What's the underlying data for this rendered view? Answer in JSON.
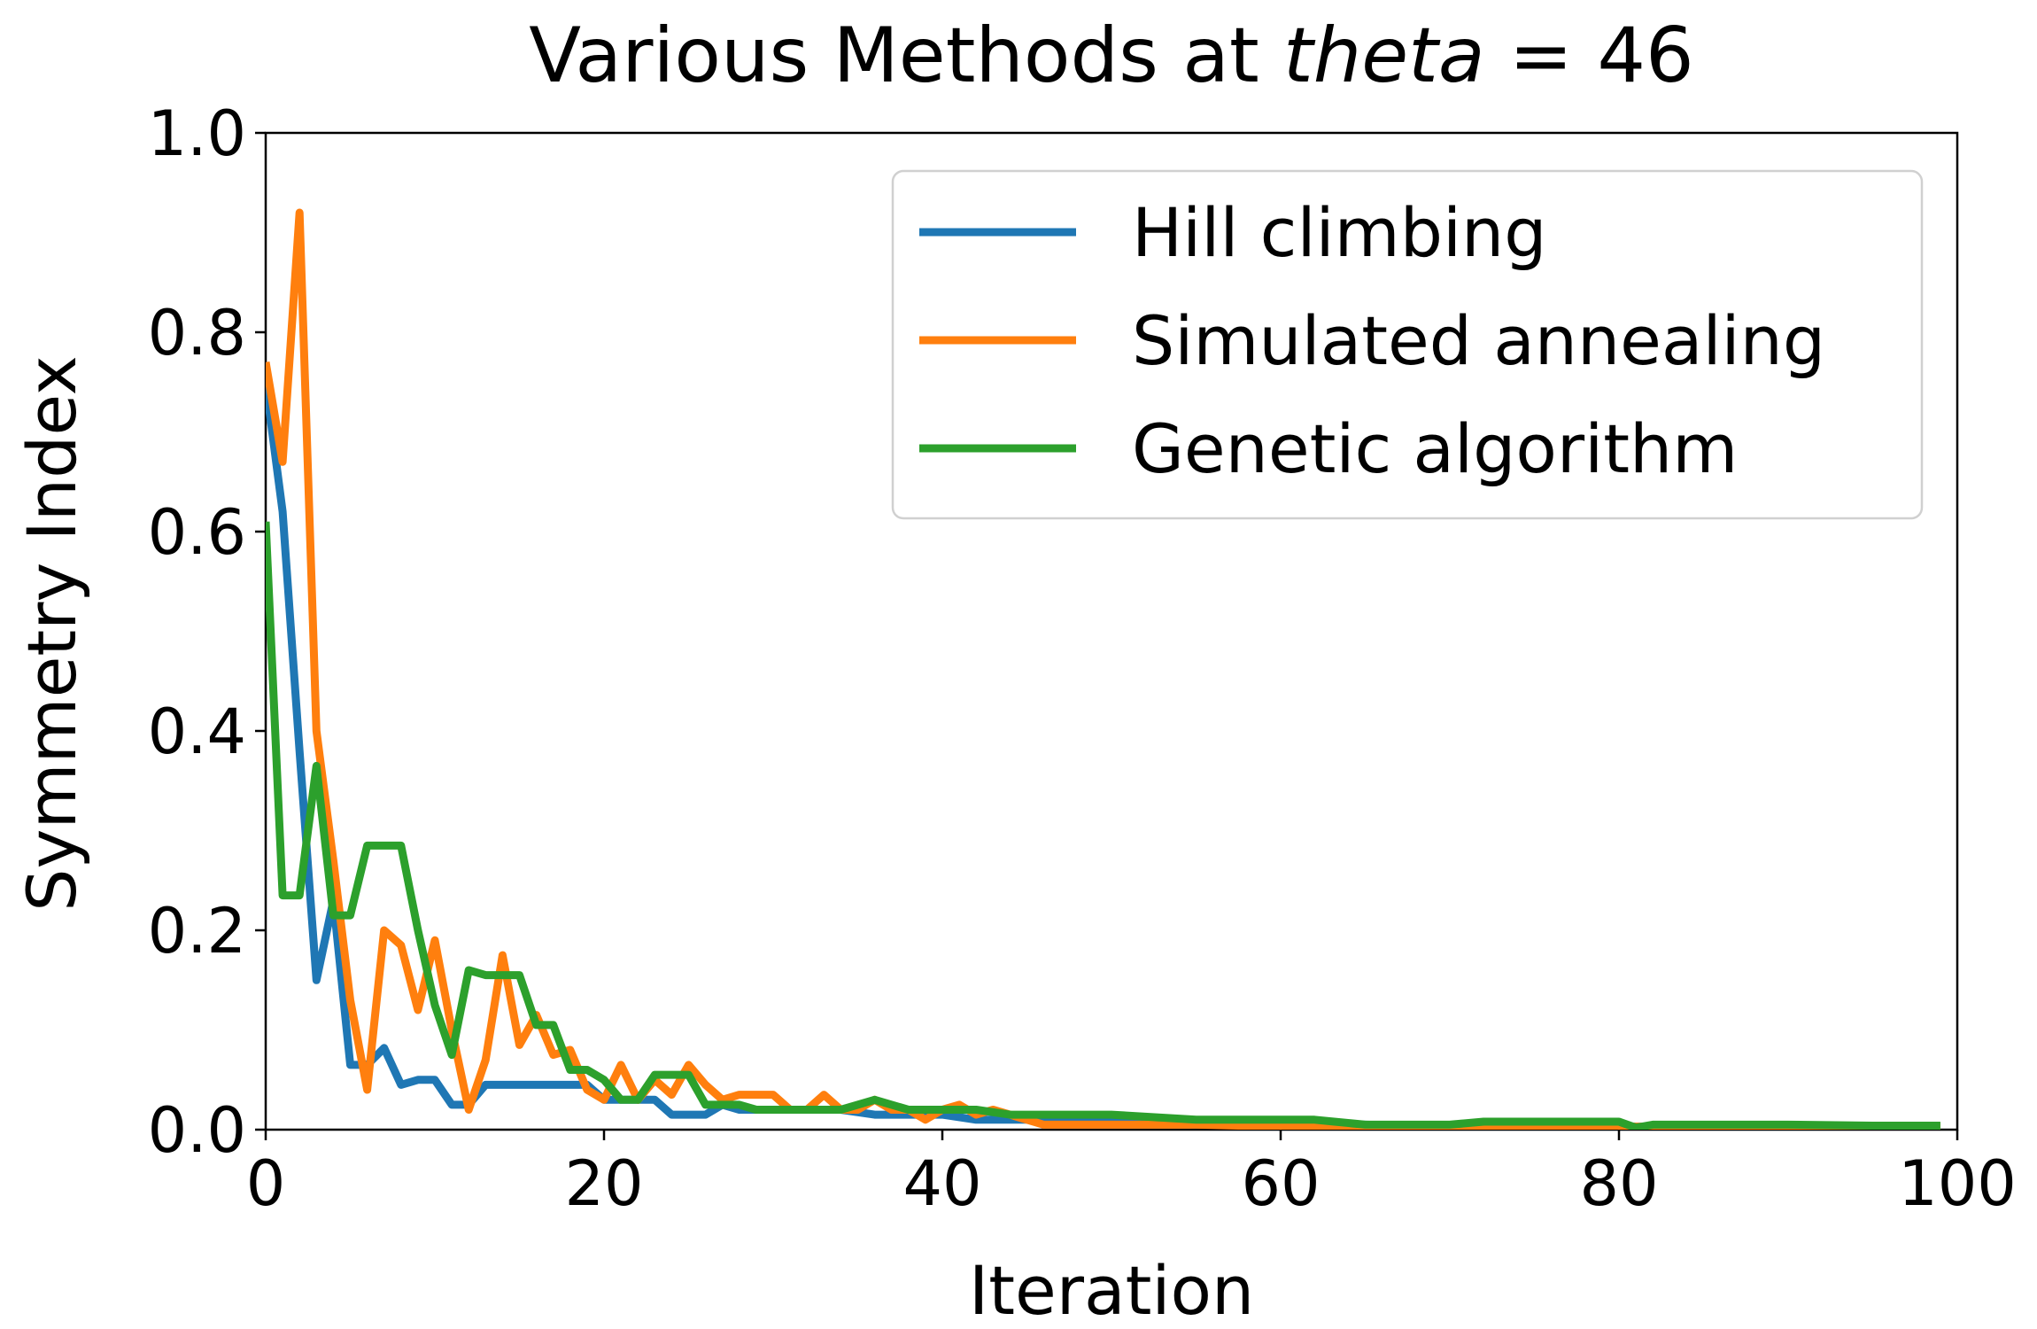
{
  "chart_data": {
    "type": "line",
    "title": "Various Methods at theta = 46",
    "title_parts": {
      "prefix": "Various Methods at ",
      "var": "theta",
      "eq": " = 46"
    },
    "xlabel": "Iteration",
    "ylabel": "Symmetry Index",
    "xlim": [
      0,
      100
    ],
    "ylim": [
      0,
      1.0
    ],
    "xticks": [
      "0",
      "20",
      "40",
      "60",
      "80",
      "100"
    ],
    "yticks": [
      "0.0",
      "0.2",
      "0.4",
      "0.6",
      "0.8",
      "1.0"
    ],
    "grid": false,
    "legend_position": "top-right",
    "series": [
      {
        "name": "Hill climbing",
        "color": "#1f77b4",
        "x": [
          0,
          1,
          2,
          3,
          4,
          5,
          6,
          7,
          8,
          9,
          10,
          11,
          12,
          13,
          14,
          15,
          16,
          17,
          18,
          19,
          20,
          21,
          22,
          23,
          24,
          25,
          26,
          27,
          28,
          29,
          30,
          32,
          34,
          36,
          38,
          40,
          42,
          44,
          46,
          48,
          50,
          55,
          60,
          65,
          70,
          75,
          80,
          85,
          90,
          95,
          99
        ],
        "y": [
          0.75,
          0.62,
          0.38,
          0.15,
          0.23,
          0.065,
          0.065,
          0.082,
          0.045,
          0.05,
          0.05,
          0.025,
          0.025,
          0.045,
          0.045,
          0.045,
          0.045,
          0.045,
          0.045,
          0.045,
          0.03,
          0.03,
          0.03,
          0.03,
          0.015,
          0.015,
          0.015,
          0.025,
          0.02,
          0.02,
          0.02,
          0.02,
          0.02,
          0.015,
          0.015,
          0.015,
          0.01,
          0.01,
          0.01,
          0.01,
          0.01,
          0.005,
          0.005,
          0.005,
          0.003,
          0.003,
          0.003,
          0.003,
          0.003,
          0.003,
          0.003
        ]
      },
      {
        "name": "Simulated annealing",
        "color": "#ff7f0e",
        "x": [
          0,
          1,
          2,
          3,
          4,
          5,
          6,
          7,
          8,
          9,
          10,
          11,
          12,
          13,
          14,
          15,
          16,
          17,
          18,
          19,
          20,
          21,
          22,
          23,
          24,
          25,
          26,
          27,
          28,
          29,
          30,
          31,
          32,
          33,
          34,
          35,
          36,
          37,
          38,
          39,
          40,
          41,
          42,
          43,
          44,
          45,
          46,
          48,
          50,
          55,
          60,
          65,
          70,
          75,
          80,
          85,
          90,
          95,
          99
        ],
        "y": [
          0.77,
          0.67,
          0.92,
          0.4,
          0.27,
          0.13,
          0.04,
          0.2,
          0.185,
          0.12,
          0.19,
          0.1,
          0.02,
          0.07,
          0.175,
          0.085,
          0.115,
          0.075,
          0.08,
          0.04,
          0.03,
          0.065,
          0.03,
          0.05,
          0.035,
          0.065,
          0.045,
          0.03,
          0.035,
          0.035,
          0.035,
          0.02,
          0.02,
          0.035,
          0.02,
          0.02,
          0.03,
          0.02,
          0.02,
          0.01,
          0.02,
          0.025,
          0.015,
          0.02,
          0.015,
          0.01,
          0.005,
          0.005,
          0.005,
          0.005,
          0.003,
          0.003,
          0.003,
          0.003,
          0.003,
          0.003,
          0.003,
          0.003,
          0.003
        ]
      },
      {
        "name": "Genetic algorithm",
        "color": "#2ca02c",
        "x": [
          0,
          1,
          2,
          3,
          4,
          5,
          6,
          7,
          8,
          9,
          10,
          11,
          12,
          13,
          14,
          15,
          16,
          17,
          18,
          19,
          20,
          21,
          22,
          23,
          24,
          25,
          26,
          27,
          28,
          29,
          30,
          32,
          34,
          36,
          38,
          40,
          42,
          44,
          46,
          48,
          50,
          55,
          60,
          62,
          65,
          70,
          72,
          75,
          80,
          81,
          82,
          85,
          90,
          95,
          99
        ],
        "y": [
          0.61,
          0.235,
          0.235,
          0.365,
          0.215,
          0.215,
          0.285,
          0.285,
          0.285,
          0.2,
          0.125,
          0.075,
          0.16,
          0.155,
          0.155,
          0.155,
          0.105,
          0.105,
          0.06,
          0.06,
          0.05,
          0.03,
          0.03,
          0.055,
          0.055,
          0.055,
          0.025,
          0.025,
          0.025,
          0.02,
          0.02,
          0.02,
          0.02,
          0.03,
          0.02,
          0.02,
          0.02,
          0.015,
          0.015,
          0.015,
          0.015,
          0.01,
          0.01,
          0.01,
          0.005,
          0.005,
          0.008,
          0.008,
          0.008,
          0.002,
          0.005,
          0.005,
          0.005,
          0.004,
          0.004
        ]
      }
    ]
  }
}
